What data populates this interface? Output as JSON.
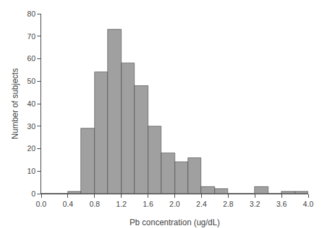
{
  "chart_data": {
    "type": "histogram",
    "bins": [
      0.0,
      0.2,
      0.4,
      0.6,
      0.8,
      1.0,
      1.2,
      1.4,
      1.6,
      1.8,
      2.0,
      2.2,
      2.4,
      2.6,
      2.8,
      3.0,
      3.2,
      3.4,
      3.6,
      3.8,
      4.0
    ],
    "values": [
      0,
      0,
      1,
      29,
      54,
      73,
      58,
      48,
      30,
      18,
      14,
      16,
      3,
      2,
      0,
      0,
      3,
      0,
      1,
      1
    ],
    "color": "#a0a0a0",
    "xlabel": "Pb concentration (ug/dL)",
    "ylabel": "Number of subjects",
    "xlim": [
      0.0,
      4.0
    ],
    "ylim": [
      0,
      80
    ],
    "xticks": [
      {
        "value": 0.0,
        "label": "0.0"
      },
      0.4,
      0.8,
      1.2,
      1.6,
      {
        "value": 2.0,
        "label": "2.0"
      },
      2.4,
      2.8,
      3.2,
      3.6,
      {
        "value": 4.0,
        "label": "4.0"
      }
    ],
    "yticks": [
      0,
      10,
      20,
      30,
      40,
      50,
      60,
      70,
      80
    ],
    "grid": false
  }
}
